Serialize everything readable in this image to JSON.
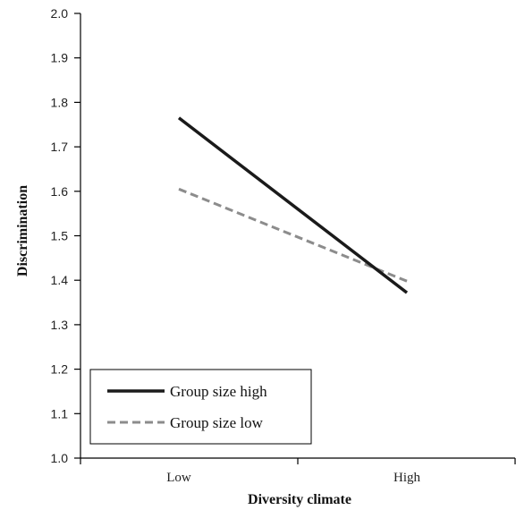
{
  "chart_data": {
    "type": "line",
    "title": "",
    "xlabel": "Diversity climate",
    "ylabel": "Discrimination",
    "categories": [
      "Low",
      "High"
    ],
    "ylim": [
      1.0,
      2.0
    ],
    "yticks": [
      "1.0",
      "1.1",
      "1.2",
      "1.3",
      "1.4",
      "1.5",
      "1.6",
      "1.7",
      "1.8",
      "1.9",
      "2.0"
    ],
    "grid": false,
    "legend_position": "bottom-left",
    "series": [
      {
        "name": "Group size high",
        "values": [
          1.765,
          1.372
        ],
        "color": "#1a1a1a",
        "style": "solid"
      },
      {
        "name": "Group size low",
        "values": [
          1.605,
          1.398
        ],
        "color": "#8c8c8c",
        "style": "dashed"
      }
    ]
  }
}
